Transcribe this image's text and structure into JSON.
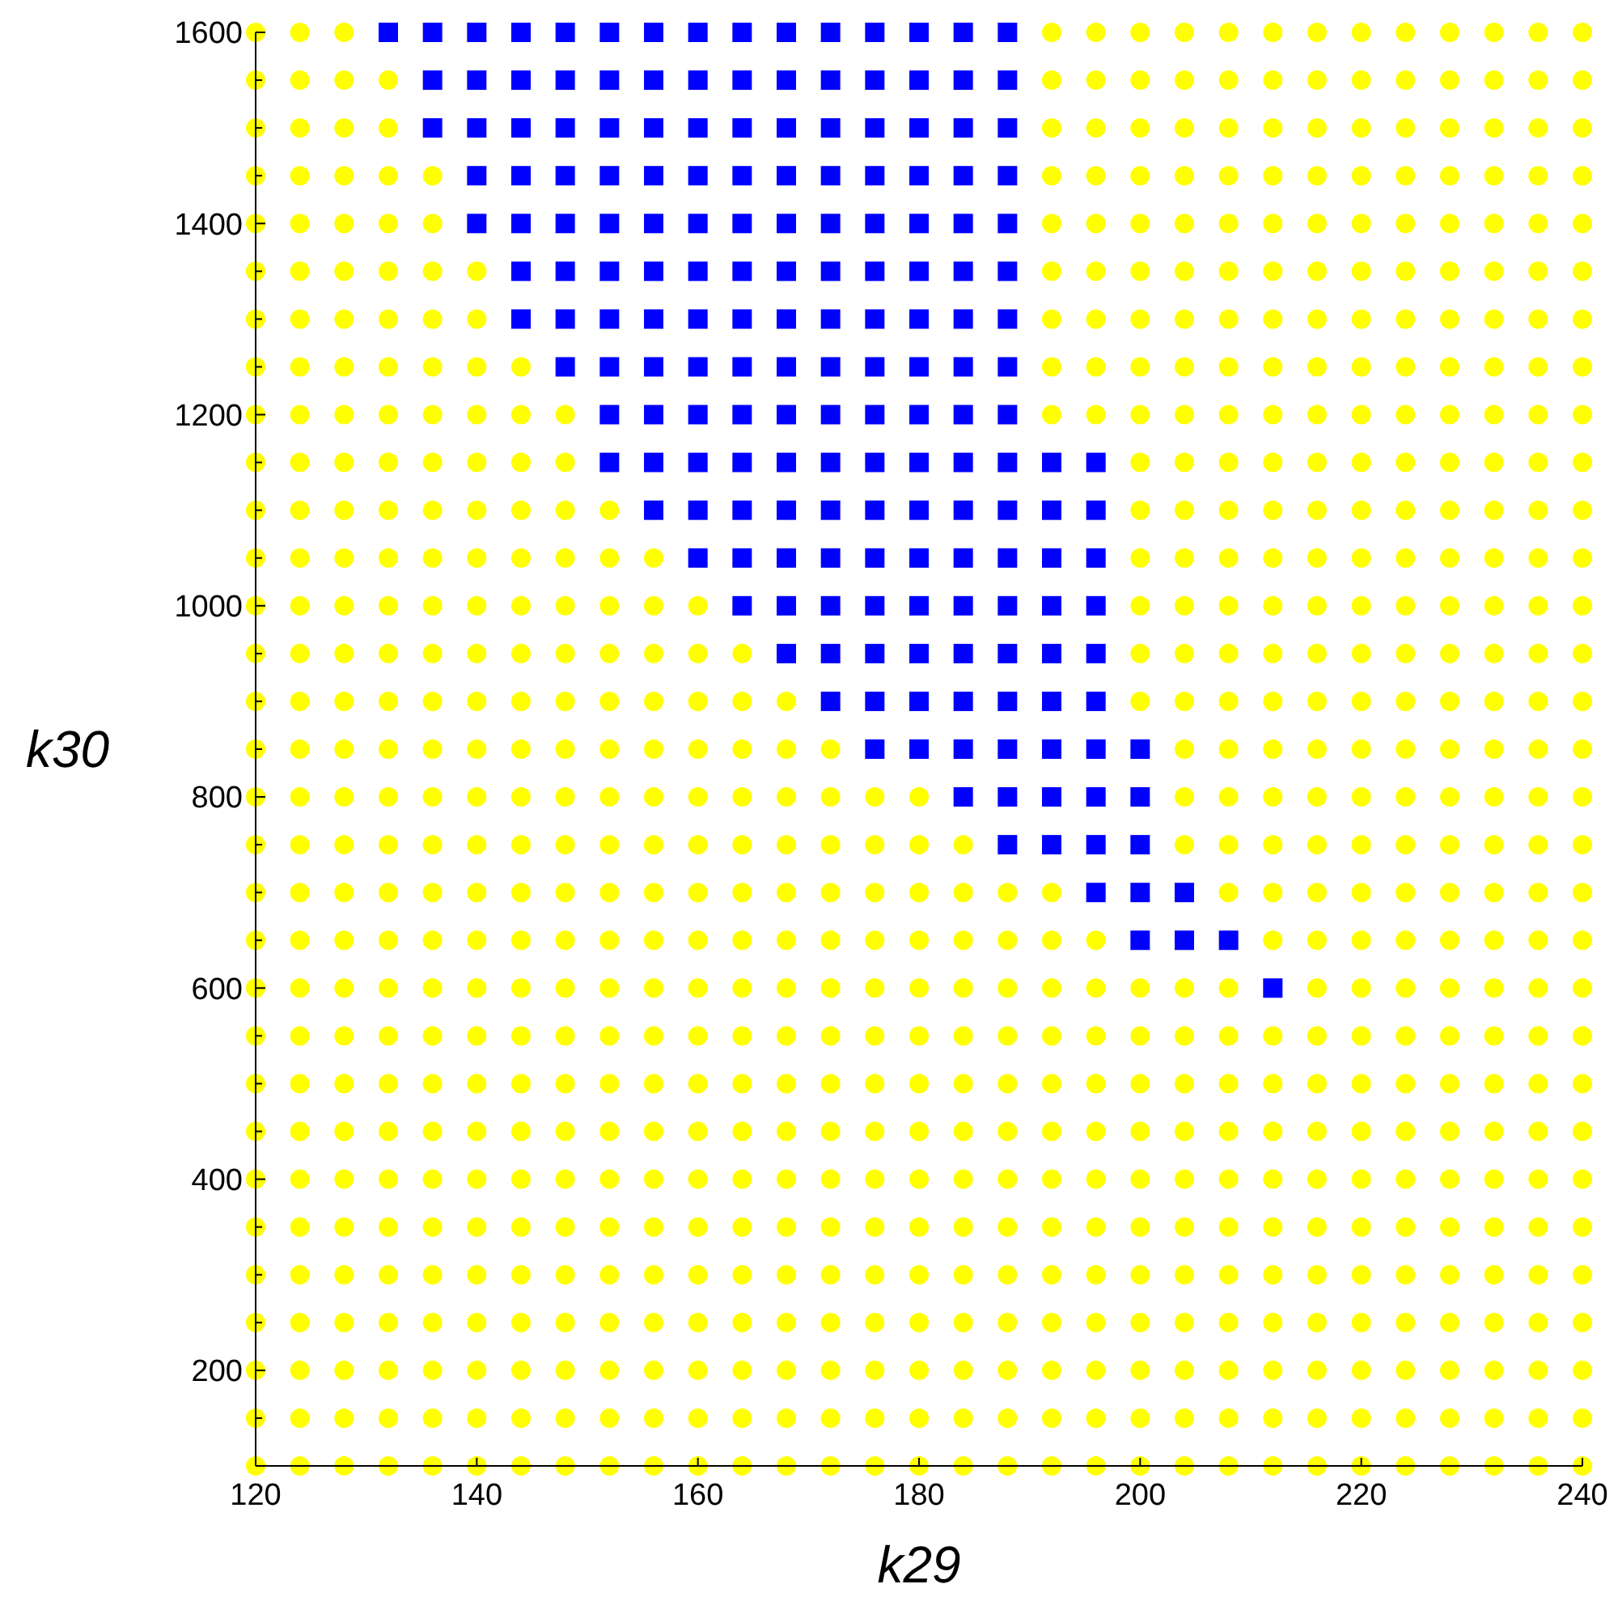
{
  "chart_data": {
    "type": "scatter",
    "xlabel": "k29",
    "ylabel": "k30",
    "xlim": [
      120,
      240
    ],
    "ylim": [
      100,
      1600
    ],
    "xticks": [
      120,
      140,
      160,
      180,
      200,
      220,
      240
    ],
    "yticks": [
      {
        "value": 100,
        "label": null
      },
      {
        "value": 150,
        "label": null
      },
      200,
      {
        "value": 250,
        "label": null
      },
      {
        "value": 300,
        "label": null
      },
      {
        "value": 350,
        "label": null
      },
      400,
      {
        "value": 450,
        "label": null
      },
      {
        "value": 500,
        "label": null
      },
      {
        "value": 550,
        "label": null
      },
      600,
      {
        "value": 650,
        "label": null
      },
      {
        "value": 700,
        "label": null
      },
      {
        "value": 750,
        "label": null
      },
      800,
      {
        "value": 850,
        "label": null
      },
      {
        "value": 900,
        "label": null
      },
      {
        "value": 950,
        "label": null
      },
      1000,
      {
        "value": 1050,
        "label": null
      },
      {
        "value": 1100,
        "label": null
      },
      {
        "value": 1150,
        "label": null
      },
      1200,
      {
        "value": 1250,
        "label": null
      },
      {
        "value": 1300,
        "label": null
      },
      {
        "value": 1350,
        "label": null
      },
      1400,
      {
        "value": 1450,
        "label": null
      },
      {
        "value": 1500,
        "label": null
      },
      {
        "value": 1550,
        "label": null
      },
      1600
    ],
    "grid": false,
    "series": [
      {
        "color": "#ffff00",
        "marker": "circle",
        "x": [
          120,
          124,
          128,
          192,
          196,
          200,
          204,
          208,
          212,
          216,
          220,
          224,
          228,
          232,
          236,
          240,
          120,
          124,
          128,
          132,
          192,
          196,
          200,
          204,
          208,
          212,
          216,
          220,
          224,
          228,
          232,
          236,
          240,
          120,
          124,
          128,
          132,
          192,
          196,
          200,
          204,
          208,
          212,
          216,
          220,
          224,
          228,
          232,
          236,
          240,
          120,
          124,
          128,
          132,
          136,
          192,
          196,
          200,
          204,
          208,
          212,
          216,
          220,
          224,
          228,
          232,
          236,
          240,
          120,
          124,
          128,
          132,
          136,
          192,
          196,
          200,
          204,
          208,
          212,
          216,
          220,
          224,
          228,
          232,
          236,
          240,
          120,
          124,
          128,
          132,
          136,
          140,
          192,
          196,
          200,
          204,
          208,
          212,
          216,
          220,
          224,
          228,
          232,
          236,
          240,
          120,
          124,
          128,
          132,
          136,
          140,
          192,
          196,
          200,
          204,
          208,
          212,
          216,
          220,
          224,
          228,
          232,
          236,
          240,
          120,
          124,
          128,
          132,
          136,
          140,
          144,
          192,
          196,
          200,
          204,
          208,
          212,
          216,
          220,
          224,
          228,
          232,
          236,
          240,
          120,
          124,
          128,
          132,
          136,
          140,
          144,
          148,
          192,
          196,
          200,
          204,
          208,
          212,
          216,
          220,
          224,
          228,
          232,
          236,
          240,
          120,
          124,
          128,
          132,
          136,
          140,
          144,
          148,
          200,
          204,
          208,
          212,
          216,
          220,
          224,
          228,
          232,
          236,
          240,
          120,
          124,
          128,
          132,
          136,
          140,
          144,
          148,
          152,
          200,
          204,
          208,
          212,
          216,
          220,
          224,
          228,
          232,
          236,
          240,
          120,
          124,
          128,
          132,
          136,
          140,
          144,
          148,
          152,
          156,
          200,
          204,
          208,
          212,
          216,
          220,
          224,
          228,
          232,
          236,
          240,
          120,
          124,
          128,
          132,
          136,
          140,
          144,
          148,
          152,
          156,
          160,
          200,
          204,
          208,
          212,
          216,
          220,
          224,
          228,
          232,
          236,
          240,
          120,
          124,
          128,
          132,
          136,
          140,
          144,
          148,
          152,
          156,
          160,
          164,
          200,
          204,
          208,
          212,
          216,
          220,
          224,
          228,
          232,
          236,
          240,
          120,
          124,
          128,
          132,
          136,
          140,
          144,
          148,
          152,
          156,
          160,
          164,
          168,
          200,
          204,
          208,
          212,
          216,
          220,
          224,
          228,
          232,
          236,
          240,
          120,
          124,
          128,
          132,
          136,
          140,
          144,
          148,
          152,
          156,
          160,
          164,
          168,
          172,
          204,
          208,
          212,
          216,
          220,
          224,
          228,
          232,
          236,
          240,
          120,
          124,
          128,
          132,
          136,
          140,
          144,
          148,
          152,
          156,
          160,
          164,
          168,
          172,
          176,
          180,
          204,
          208,
          212,
          216,
          220,
          224,
          228,
          232,
          236,
          240,
          120,
          124,
          128,
          132,
          136,
          140,
          144,
          148,
          152,
          156,
          160,
          164,
          168,
          172,
          176,
          180,
          184,
          204,
          208,
          212,
          216,
          220,
          224,
          228,
          232,
          236,
          240,
          120,
          124,
          128,
          132,
          136,
          140,
          144,
          148,
          152,
          156,
          160,
          164,
          168,
          172,
          176,
          180,
          184,
          188,
          192,
          208,
          212,
          216,
          220,
          224,
          228,
          232,
          236,
          240,
          120,
          124,
          128,
          132,
          136,
          140,
          144,
          148,
          152,
          156,
          160,
          164,
          168,
          172,
          176,
          180,
          184,
          188,
          192,
          196,
          212,
          216,
          220,
          224,
          228,
          232,
          236,
          240,
          120,
          124,
          128,
          132,
          136,
          140,
          144,
          148,
          152,
          156,
          160,
          164,
          168,
          172,
          176,
          180,
          184,
          188,
          192,
          196,
          200,
          204,
          208,
          216,
          220,
          224,
          228,
          232,
          236,
          240,
          120,
          124,
          128,
          132,
          136,
          140,
          144,
          148,
          152,
          156,
          160,
          164,
          168,
          172,
          176,
          180,
          184,
          188,
          192,
          196,
          200,
          204,
          208,
          212,
          216,
          220,
          224,
          228,
          232,
          236,
          240,
          120,
          124,
          128,
          132,
          136,
          140,
          144,
          148,
          152,
          156,
          160,
          164,
          168,
          172,
          176,
          180,
          184,
          188,
          192,
          196,
          200,
          204,
          208,
          212,
          216,
          220,
          224,
          228,
          232,
          236,
          240,
          120,
          124,
          128,
          132,
          136,
          140,
          144,
          148,
          152,
          156,
          160,
          164,
          168,
          172,
          176,
          180,
          184,
          188,
          192,
          196,
          200,
          204,
          208,
          212,
          216,
          220,
          224,
          228,
          232,
          236,
          240,
          120,
          124,
          128,
          132,
          136,
          140,
          144,
          148,
          152,
          156,
          160,
          164,
          168,
          172,
          176,
          180,
          184,
          188,
          192,
          196,
          200,
          204,
          208,
          212,
          216,
          220,
          224,
          228,
          232,
          236,
          240,
          120,
          124,
          128,
          132,
          136,
          140,
          144,
          148,
          152,
          156,
          160,
          164,
          168,
          172,
          176,
          180,
          184,
          188,
          192,
          196,
          200,
          204,
          208,
          212,
          216,
          220,
          224,
          228,
          232,
          236,
          240,
          120,
          124,
          128,
          132,
          136,
          140,
          144,
          148,
          152,
          156,
          160,
          164,
          168,
          172,
          176,
          180,
          184,
          188,
          192,
          196,
          200,
          204,
          208,
          212,
          216,
          220,
          224,
          228,
          232,
          236,
          240,
          120,
          124,
          128,
          132,
          136,
          140,
          144,
          148,
          152,
          156,
          160,
          164,
          168,
          172,
          176,
          180,
          184,
          188,
          192,
          196,
          200,
          204,
          208,
          212,
          216,
          220,
          224,
          228,
          232,
          236,
          240,
          120,
          124,
          128,
          132,
          136,
          140,
          144,
          148,
          152,
          156,
          160,
          164,
          168,
          172,
          176,
          180,
          184,
          188,
          192,
          196,
          200,
          204,
          208,
          212,
          216,
          220,
          224,
          228,
          232,
          236,
          240,
          120,
          124,
          128,
          132,
          136,
          140,
          144,
          148,
          152,
          156,
          160,
          164,
          168,
          172,
          176,
          180,
          184,
          188,
          192,
          196,
          200,
          204,
          208,
          212,
          216,
          220,
          224,
          228,
          232,
          236,
          240,
          120,
          124,
          128,
          132,
          136,
          140,
          144,
          148,
          152,
          156,
          160,
          164,
          168,
          172,
          176,
          180,
          184,
          188,
          192,
          196,
          200,
          204,
          208,
          212,
          216,
          220,
          224,
          228,
          232,
          236,
          240
        ],
        "values": [
          1600,
          1600,
          1600,
          1600,
          1600,
          1600,
          1600,
          1600,
          1600,
          1600,
          1600,
          1600,
          1600,
          1600,
          1600,
          1600,
          1550,
          1550,
          1550,
          1550,
          1550,
          1550,
          1550,
          1550,
          1550,
          1550,
          1550,
          1550,
          1550,
          1550,
          1550,
          1550,
          1550,
          1500,
          1500,
          1500,
          1500,
          1500,
          1500,
          1500,
          1500,
          1500,
          1500,
          1500,
          1500,
          1500,
          1500,
          1500,
          1500,
          1500,
          1450,
          1450,
          1450,
          1450,
          1450,
          1450,
          1450,
          1450,
          1450,
          1450,
          1450,
          1450,
          1450,
          1450,
          1450,
          1450,
          1450,
          1450,
          1400,
          1400,
          1400,
          1400,
          1400,
          1400,
          1400,
          1400,
          1400,
          1400,
          1400,
          1400,
          1400,
          1400,
          1400,
          1400,
          1400,
          1400,
          1350,
          1350,
          1350,
          1350,
          1350,
          1350,
          1350,
          1350,
          1350,
          1350,
          1350,
          1350,
          1350,
          1350,
          1350,
          1350,
          1350,
          1350,
          1350,
          1300,
          1300,
          1300,
          1300,
          1300,
          1300,
          1300,
          1300,
          1300,
          1300,
          1300,
          1300,
          1300,
          1300,
          1300,
          1300,
          1300,
          1300,
          1300,
          1250,
          1250,
          1250,
          1250,
          1250,
          1250,
          1250,
          1250,
          1250,
          1250,
          1250,
          1250,
          1250,
          1250,
          1250,
          1250,
          1250,
          1250,
          1250,
          1250,
          1200,
          1200,
          1200,
          1200,
          1200,
          1200,
          1200,
          1200,
          1200,
          1200,
          1200,
          1200,
          1200,
          1200,
          1200,
          1200,
          1200,
          1200,
          1200,
          1200,
          1200,
          1150,
          1150,
          1150,
          1150,
          1150,
          1150,
          1150,
          1150,
          1150,
          1150,
          1150,
          1150,
          1150,
          1150,
          1150,
          1150,
          1150,
          1150,
          1150,
          1100,
          1100,
          1100,
          1100,
          1100,
          1100,
          1100,
          1100,
          1100,
          1100,
          1100,
          1100,
          1100,
          1100,
          1100,
          1100,
          1100,
          1100,
          1100,
          1100,
          1050,
          1050,
          1050,
          1050,
          1050,
          1050,
          1050,
          1050,
          1050,
          1050,
          1050,
          1050,
          1050,
          1050,
          1050,
          1050,
          1050,
          1050,
          1050,
          1050,
          1050,
          1000,
          1000,
          1000,
          1000,
          1000,
          1000,
          1000,
          1000,
          1000,
          1000,
          1000,
          1000,
          1000,
          1000,
          1000,
          1000,
          1000,
          1000,
          1000,
          1000,
          1000,
          1000,
          950,
          950,
          950,
          950,
          950,
          950,
          950,
          950,
          950,
          950,
          950,
          950,
          950,
          950,
          950,
          950,
          950,
          950,
          950,
          950,
          950,
          950,
          950,
          900,
          900,
          900,
          900,
          900,
          900,
          900,
          900,
          900,
          900,
          900,
          900,
          900,
          900,
          900,
          900,
          900,
          900,
          900,
          900,
          900,
          900,
          900,
          900,
          850,
          850,
          850,
          850,
          850,
          850,
          850,
          850,
          850,
          850,
          850,
          850,
          850,
          850,
          850,
          850,
          850,
          850,
          850,
          850,
          850,
          850,
          850,
          850,
          800,
          800,
          800,
          800,
          800,
          800,
          800,
          800,
          800,
          800,
          800,
          800,
          800,
          800,
          800,
          800,
          800,
          800,
          800,
          800,
          800,
          800,
          800,
          800,
          800,
          800,
          750,
          750,
          750,
          750,
          750,
          750,
          750,
          750,
          750,
          750,
          750,
          750,
          750,
          750,
          750,
          750,
          750,
          750,
          750,
          750,
          750,
          750,
          750,
          750,
          750,
          750,
          750,
          700,
          700,
          700,
          700,
          700,
          700,
          700,
          700,
          700,
          700,
          700,
          700,
          700,
          700,
          700,
          700,
          700,
          700,
          700,
          700,
          700,
          700,
          700,
          700,
          700,
          700,
          700,
          700,
          650,
          650,
          650,
          650,
          650,
          650,
          650,
          650,
          650,
          650,
          650,
          650,
          650,
          650,
          650,
          650,
          650,
          650,
          650,
          650,
          650,
          650,
          650,
          650,
          650,
          650,
          650,
          650,
          600,
          600,
          600,
          600,
          600,
          600,
          600,
          600,
          600,
          600,
          600,
          600,
          600,
          600,
          600,
          600,
          600,
          600,
          600,
          600,
          600,
          600,
          600,
          600,
          600,
          600,
          600,
          600,
          600,
          600,
          550,
          550,
          550,
          550,
          550,
          550,
          550,
          550,
          550,
          550,
          550,
          550,
          550,
          550,
          550,
          550,
          550,
          550,
          550,
          550,
          550,
          550,
          550,
          550,
          550,
          550,
          550,
          550,
          550,
          550,
          550,
          500,
          500,
          500,
          500,
          500,
          500,
          500,
          500,
          500,
          500,
          500,
          500,
          500,
          500,
          500,
          500,
          500,
          500,
          500,
          500,
          500,
          500,
          500,
          500,
          500,
          500,
          500,
          500,
          500,
          500,
          500,
          450,
          450,
          450,
          450,
          450,
          450,
          450,
          450,
          450,
          450,
          450,
          450,
          450,
          450,
          450,
          450,
          450,
          450,
          450,
          450,
          450,
          450,
          450,
          450,
          450,
          450,
          450,
          450,
          450,
          450,
          450,
          400,
          400,
          400,
          400,
          400,
          400,
          400,
          400,
          400,
          400,
          400,
          400,
          400,
          400,
          400,
          400,
          400,
          400,
          400,
          400,
          400,
          400,
          400,
          400,
          400,
          400,
          400,
          400,
          400,
          400,
          400,
          350,
          350,
          350,
          350,
          350,
          350,
          350,
          350,
          350,
          350,
          350,
          350,
          350,
          350,
          350,
          350,
          350,
          350,
          350,
          350,
          350,
          350,
          350,
          350,
          350,
          350,
          350,
          350,
          350,
          350,
          350,
          300,
          300,
          300,
          300,
          300,
          300,
          300,
          300,
          300,
          300,
          300,
          300,
          300,
          300,
          300,
          300,
          300,
          300,
          300,
          300,
          300,
          300,
          300,
          300,
          300,
          300,
          300,
          300,
          300,
          300,
          300,
          250,
          250,
          250,
          250,
          250,
          250,
          250,
          250,
          250,
          250,
          250,
          250,
          250,
          250,
          250,
          250,
          250,
          250,
          250,
          250,
          250,
          250,
          250,
          250,
          250,
          250,
          250,
          250,
          250,
          250,
          250,
          200,
          200,
          200,
          200,
          200,
          200,
          200,
          200,
          200,
          200,
          200,
          200,
          200,
          200,
          200,
          200,
          200,
          200,
          200,
          200,
          200,
          200,
          200,
          200,
          200,
          200,
          200,
          200,
          200,
          200,
          200,
          150,
          150,
          150,
          150,
          150,
          150,
          150,
          150,
          150,
          150,
          150,
          150,
          150,
          150,
          150,
          150,
          150,
          150,
          150,
          150,
          150,
          150,
          150,
          150,
          150,
          150,
          150,
          150,
          150,
          150,
          150,
          100,
          100,
          100,
          100,
          100,
          100,
          100,
          100,
          100,
          100,
          100,
          100,
          100,
          100,
          100,
          100,
          100,
          100,
          100,
          100,
          100,
          100,
          100,
          100,
          100,
          100,
          100,
          100,
          100,
          100,
          100
        ]
      },
      {
        "color": "#0000ff",
        "marker": "square",
        "x": [
          132,
          136,
          140,
          144,
          148,
          152,
          156,
          160,
          164,
          168,
          172,
          176,
          180,
          184,
          188,
          136,
          140,
          144,
          148,
          152,
          156,
          160,
          164,
          168,
          172,
          176,
          180,
          184,
          188,
          136,
          140,
          144,
          148,
          152,
          156,
          160,
          164,
          168,
          172,
          176,
          180,
          184,
          188,
          140,
          144,
          148,
          152,
          156,
          160,
          164,
          168,
          172,
          176,
          180,
          184,
          188,
          140,
          144,
          148,
          152,
          156,
          160,
          164,
          168,
          172,
          176,
          180,
          184,
          188,
          144,
          148,
          152,
          156,
          160,
          164,
          168,
          172,
          176,
          180,
          184,
          188,
          144,
          148,
          152,
          156,
          160,
          164,
          168,
          172,
          176,
          180,
          184,
          188,
          148,
          152,
          156,
          160,
          164,
          168,
          172,
          176,
          180,
          184,
          188,
          152,
          156,
          160,
          164,
          168,
          172,
          176,
          180,
          184,
          188,
          152,
          156,
          160,
          164,
          168,
          172,
          176,
          180,
          184,
          188,
          192,
          196,
          156,
          160,
          164,
          168,
          172,
          176,
          180,
          184,
          188,
          192,
          196,
          160,
          164,
          168,
          172,
          176,
          180,
          184,
          188,
          192,
          196,
          164,
          168,
          172,
          176,
          180,
          184,
          188,
          192,
          196,
          168,
          172,
          176,
          180,
          184,
          188,
          192,
          196,
          172,
          176,
          180,
          184,
          188,
          192,
          196,
          176,
          180,
          184,
          188,
          192,
          196,
          200,
          184,
          188,
          192,
          196,
          200,
          188,
          192,
          196,
          200,
          196,
          200,
          204,
          200,
          204,
          208,
          212
        ],
        "values": [
          1600,
          1600,
          1600,
          1600,
          1600,
          1600,
          1600,
          1600,
          1600,
          1600,
          1600,
          1600,
          1600,
          1600,
          1600,
          1550,
          1550,
          1550,
          1550,
          1550,
          1550,
          1550,
          1550,
          1550,
          1550,
          1550,
          1550,
          1550,
          1550,
          1500,
          1500,
          1500,
          1500,
          1500,
          1500,
          1500,
          1500,
          1500,
          1500,
          1500,
          1500,
          1500,
          1500,
          1450,
          1450,
          1450,
          1450,
          1450,
          1450,
          1450,
          1450,
          1450,
          1450,
          1450,
          1450,
          1450,
          1400,
          1400,
          1400,
          1400,
          1400,
          1400,
          1400,
          1400,
          1400,
          1400,
          1400,
          1400,
          1400,
          1350,
          1350,
          1350,
          1350,
          1350,
          1350,
          1350,
          1350,
          1350,
          1350,
          1350,
          1350,
          1300,
          1300,
          1300,
          1300,
          1300,
          1300,
          1300,
          1300,
          1300,
          1300,
          1300,
          1300,
          1250,
          1250,
          1250,
          1250,
          1250,
          1250,
          1250,
          1250,
          1250,
          1250,
          1250,
          1200,
          1200,
          1200,
          1200,
          1200,
          1200,
          1200,
          1200,
          1200,
          1200,
          1150,
          1150,
          1150,
          1150,
          1150,
          1150,
          1150,
          1150,
          1150,
          1150,
          1150,
          1150,
          1100,
          1100,
          1100,
          1100,
          1100,
          1100,
          1100,
          1100,
          1100,
          1100,
          1100,
          1050,
          1050,
          1050,
          1050,
          1050,
          1050,
          1050,
          1050,
          1050,
          1050,
          1000,
          1000,
          1000,
          1000,
          1000,
          1000,
          1000,
          1000,
          1000,
          950,
          950,
          950,
          950,
          950,
          950,
          950,
          950,
          900,
          900,
          900,
          900,
          900,
          900,
          900,
          850,
          850,
          850,
          850,
          850,
          850,
          850,
          800,
          800,
          800,
          800,
          800,
          750,
          750,
          750,
          750,
          700,
          700,
          700,
          650,
          650,
          650,
          600
        ]
      }
    ]
  }
}
